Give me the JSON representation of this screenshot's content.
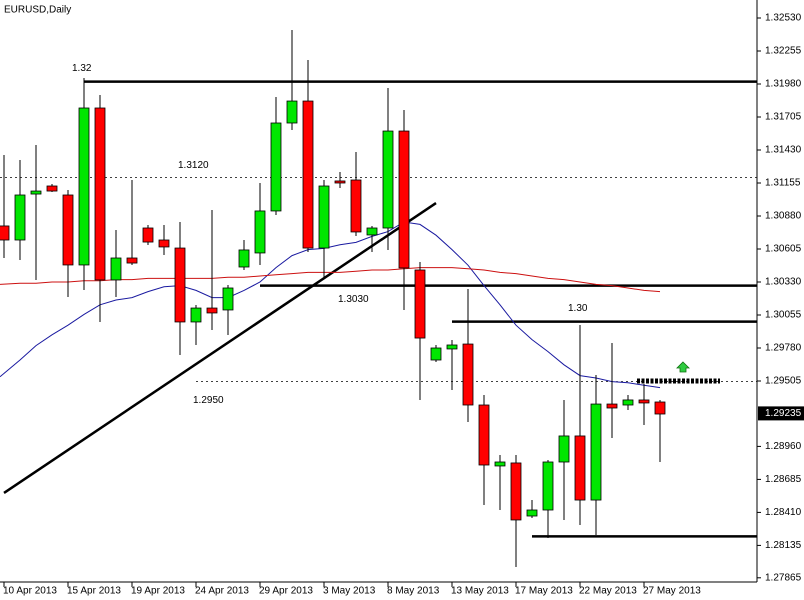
{
  "chart_data": {
    "type": "candlestick",
    "title": "EURUSD,Daily",
    "categories": [
      "10 Apr 2013",
      null,
      null,
      null,
      "15 Apr 2013",
      null,
      null,
      null,
      "19 Apr 2013",
      null,
      null,
      null,
      "24 Apr 2013",
      null,
      null,
      null,
      "29 Apr 2013",
      null,
      null,
      null,
      "3 May 2013",
      null,
      null,
      null,
      "8 May 2013",
      null,
      null,
      null,
      "13 May 2013",
      null,
      null,
      null,
      "17 May 2013",
      null,
      null,
      null,
      "22 May 2013",
      null,
      null,
      null,
      "27 May 2013",
      null
    ],
    "open": [
      1.30797,
      1.3068,
      1.31063,
      1.3113,
      1.31055,
      1.30472,
      1.3178,
      1.30347,
      1.3053,
      1.3078,
      1.3068,
      1.30613,
      1.29997,
      1.30113,
      1.30097,
      1.30455,
      1.30572,
      1.30922,
      1.31655,
      1.31838,
      1.30613,
      1.31172,
      1.3118,
      1.30722,
      1.3078,
      1.31588,
      1.3043,
      1.2968,
      1.29772,
      1.29813,
      1.29305,
      1.28797,
      1.28822,
      1.2838,
      1.2843,
      1.2883,
      1.29047,
      1.28513,
      1.29313,
      1.29305,
      1.29347,
      1.2933
    ],
    "high": [
      1.31388,
      1.31347,
      1.31472,
      1.31147,
      1.31097,
      1.3203,
      1.31888,
      1.30763,
      1.3118,
      1.30805,
      1.30805,
      1.3083,
      1.30138,
      1.3093,
      1.30305,
      1.3068,
      1.31155,
      1.31872,
      1.3243,
      1.3218,
      1.3118,
      1.31247,
      1.31413,
      1.30797,
      1.31947,
      1.31763,
      1.30497,
      1.29805,
      1.29847,
      1.30272,
      1.29388,
      1.28888,
      1.28888,
      1.28513,
      1.28847,
      1.29347,
      1.29972,
      1.29555,
      1.29822,
      1.29388,
      1.2948,
      1.29347
    ],
    "low": [
      1.3053,
      1.30513,
      1.30347,
      1.3108,
      1.30205,
      1.30263,
      1.29997,
      1.30205,
      1.30472,
      1.30638,
      1.30555,
      1.29722,
      1.29805,
      1.2993,
      1.29888,
      1.3043,
      1.30472,
      1.30888,
      1.31597,
      1.3058,
      1.30363,
      1.31113,
      1.30713,
      1.3058,
      1.30597,
      1.30097,
      1.29347,
      1.29663,
      1.2943,
      1.29163,
      1.28472,
      1.2843,
      1.27955,
      1.28363,
      1.28197,
      1.28347,
      1.28305,
      1.28222,
      1.2903,
      1.29263,
      1.29138,
      1.2883
    ],
    "close": [
      1.3068,
      1.31055,
      1.31088,
      1.31088,
      1.30472,
      1.3178,
      1.30347,
      1.3053,
      1.30488,
      1.30663,
      1.30622,
      1.29997,
      1.30113,
      1.30072,
      1.3028,
      1.30597,
      1.30922,
      1.31655,
      1.31838,
      1.30613,
      1.3113,
      1.31155,
      1.30747,
      1.3078,
      1.31588,
      1.30447,
      1.29863,
      1.2978,
      1.29805,
      1.29305,
      1.28805,
      1.2883,
      1.28347,
      1.2843,
      1.2883,
      1.29047,
      1.28513,
      1.29313,
      1.2928,
      1.29347,
      1.29322,
      1.2923
    ],
    "up_color": "#00e600",
    "down_color": "#ff0000",
    "moving_averages": [
      {
        "color": "#1a1aa0",
        "values": [
          1.2954,
          1.2968,
          1.298,
          1.2989,
          1.2997,
          1.3006,
          1.3014,
          1.3018,
          1.302,
          1.3025,
          1.3029,
          1.303,
          1.3026,
          1.302,
          1.302,
          1.3026,
          1.3033,
          1.3045,
          1.3055,
          1.306,
          1.3061,
          1.3064,
          1.3066,
          1.3071,
          1.3075,
          1.3083,
          1.3081,
          1.3072,
          1.306,
          1.3047,
          1.303,
          1.3014,
          1.2997,
          1.2985,
          1.2975,
          1.2964,
          1.2955,
          1.2953,
          1.295,
          1.2949,
          1.2947,
          1.2945
        ]
      },
      {
        "color": "#cc1010",
        "values": [
          1.3031,
          1.3032,
          1.3032,
          1.3033,
          1.3033,
          1.3034,
          1.3034,
          1.3035,
          1.3035,
          1.3036,
          1.3036,
          1.3036,
          1.3036,
          1.3036,
          1.3037,
          1.3037,
          1.3038,
          1.3039,
          1.304,
          1.3041,
          1.3041,
          1.3041,
          1.3042,
          1.3043,
          1.3043,
          1.3044,
          1.3045,
          1.3045,
          1.3045,
          1.3044,
          1.3043,
          1.3041,
          1.304,
          1.3038,
          1.3036,
          1.3035,
          1.3033,
          1.3031,
          1.303,
          1.3028,
          1.3026,
          1.3025
        ]
      }
    ],
    "levels": [
      1.32,
      {
        "value": 1.312,
        "label": "1.3120"
      },
      {
        "value": 1.303,
        "label": "1.3030"
      },
      {
        "value": 1.295,
        "label": "1.2950"
      },
      {
        "value": 1.3,
        "label": "1.30"
      }
    ],
    "support_line": 1.2821,
    "target_line": 1.29505,
    "trendline": [
      1.28572,
      1.30988
    ],
    "last_price": 1.29235,
    "ylim": [
      1.2783,
      1.3268
    ],
    "yticks": [
      {
        "value": 1.3253,
        "label": "1.32530"
      },
      1.32255,
      {
        "value": 1.3198,
        "label": "1.31980"
      },
      1.31705,
      {
        "value": 1.3143,
        "label": "1.31430"
      },
      1.31155,
      {
        "value": 1.3088,
        "label": "1.30880"
      },
      1.30605,
      {
        "value": 1.3033,
        "label": "1.30330"
      },
      1.30055,
      {
        "value": 1.2978,
        "label": "1.29780"
      },
      1.29505,
      {
        "value": 1.2896,
        "label": "1.28960"
      },
      1.28685,
      {
        "value": 1.2841,
        "label": "1.28410"
      },
      1.28135,
      1.27865
    ]
  }
}
